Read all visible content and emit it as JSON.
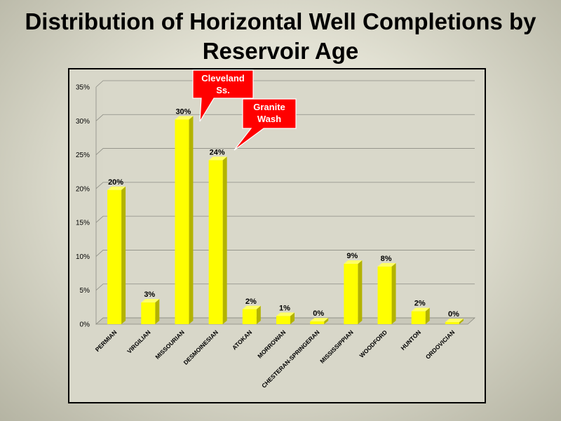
{
  "title_line1": "Distribution of Horizontal Well Completions by",
  "title_line2": "Reservoir Age",
  "colors": {
    "bar": "#ffff00",
    "bar_side": "#b3b300",
    "callout": "#ff0000"
  },
  "chart_data": {
    "type": "bar",
    "title": "Distribution of Horizontal Well Completions by Reservoir Age",
    "categories": [
      "PERMIAN",
      "VIRGILIAN",
      "MISSOURIAN",
      "DESMOINESIAN",
      "ATOKAN",
      "MORROWAN",
      "CHESTERAN-SPRINGERAN",
      "MISSISSIPPIAN",
      "WOODFORD",
      "HUNTON",
      "ORDOVICIAN"
    ],
    "values": [
      20,
      3,
      30,
      24,
      2,
      1,
      0,
      9,
      8,
      2,
      0
    ],
    "plotted_values": [
      19.8,
      3.2,
      30.2,
      24.2,
      2.2,
      1.2,
      0.4,
      8.9,
      8.5,
      1.9,
      0.3
    ],
    "data_labels": [
      "20%",
      "3%",
      "30%",
      "24%",
      "2%",
      "1%",
      "0%",
      "9%",
      "8%",
      "2%",
      "0%"
    ],
    "ylim": [
      0,
      35
    ],
    "yticks": [
      0,
      5,
      10,
      15,
      20,
      25,
      30,
      35
    ],
    "ytick_labels": [
      "0%",
      "5%",
      "10%",
      "15%",
      "20%",
      "25%",
      "30%",
      "35%"
    ],
    "xlabel": "",
    "ylabel": "",
    "grid": true,
    "annotations": [
      {
        "lines": [
          "Cleveland",
          "Ss."
        ],
        "target": "MISSOURIAN"
      },
      {
        "lines": [
          "Granite",
          "Wash"
        ],
        "target": "DESMOINESIAN"
      }
    ]
  }
}
